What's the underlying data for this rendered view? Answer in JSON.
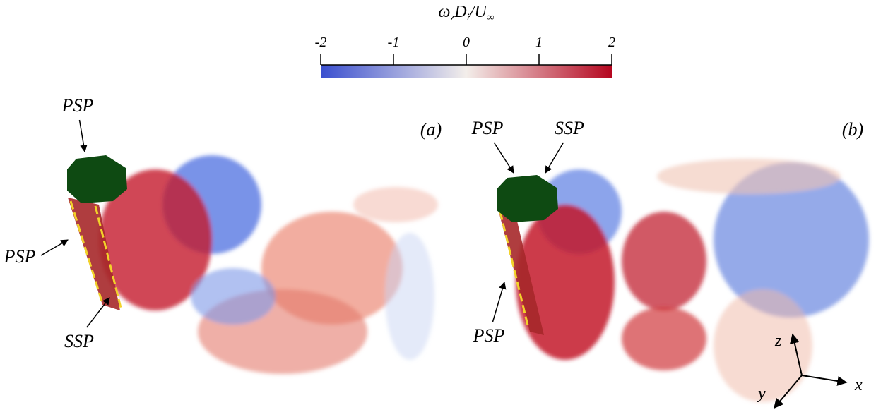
{
  "colorbar": {
    "label": [
      "ω",
      "z",
      "D",
      "i",
      "/",
      "U",
      "∞"
    ],
    "range": [
      -2,
      2
    ],
    "ticks": [
      -2,
      -1,
      0,
      1,
      2
    ],
    "colors": [
      "#3a4fcf",
      "#f3eeea",
      "#b5061f"
    ]
  },
  "panels": [
    {
      "label": "(a)",
      "annotations": [
        "PSP",
        "PSP",
        "SSP"
      ]
    },
    {
      "label": "(b)",
      "annotations": [
        "PSP",
        "SSP",
        "PSP"
      ]
    }
  ],
  "axes": [
    "z",
    "x",
    "y"
  ]
}
